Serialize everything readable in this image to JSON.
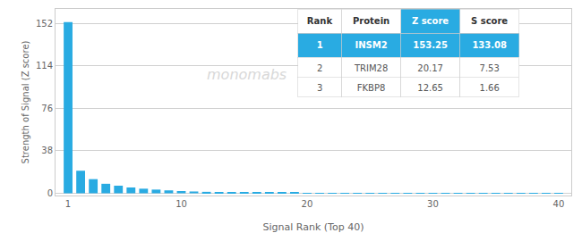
{
  "chart_data": {
    "type": "bar",
    "x": [
      1,
      2,
      3,
      4,
      5,
      6,
      7,
      8,
      9,
      10,
      11,
      12,
      13,
      14,
      15,
      16,
      17,
      18,
      19,
      20,
      21,
      22,
      23,
      24,
      25,
      26,
      27,
      28,
      29,
      30,
      31,
      32,
      33,
      34,
      35,
      36,
      37,
      38,
      39,
      40
    ],
    "values": [
      153.25,
      20.17,
      12.65,
      8.5,
      6.8,
      5.2,
      4.1,
      3.3,
      2.6,
      2.0,
      1.6,
      1.3,
      1.1,
      0.9,
      0.75,
      0.65,
      0.55,
      0.48,
      0.42,
      0.37,
      0.33,
      0.29,
      0.26,
      0.23,
      0.2,
      0.18,
      0.16,
      0.14,
      0.13,
      0.11,
      0.1,
      0.09,
      0.08,
      0.07,
      0.07,
      0.06,
      0.05,
      0.05,
      0.04,
      0.04
    ],
    "color": "#29abe2",
    "xlabel": "Signal Rank (Top 40)",
    "ylabel": "Strength of Signal (Z score)",
    "xlim": [
      0,
      41
    ],
    "xticks": [
      1,
      10,
      20,
      30,
      40
    ],
    "ylim": [
      -2,
      165
    ],
    "yticks": [
      0,
      38,
      76,
      114,
      152
    ],
    "grid": true,
    "annotations": [
      {
        "text": "monomabs"
      }
    ],
    "table": {
      "headers": [
        "Rank",
        "Protein",
        "Z score",
        "S score"
      ],
      "rows": [
        [
          "1",
          "INSM2",
          "153.25",
          "133.08"
        ],
        [
          "2",
          "TRIM28",
          "20.17",
          "7.53"
        ],
        [
          "3",
          "FKBP8",
          "12.65",
          "1.66"
        ]
      ],
      "highlight_color": "#29abe2"
    }
  }
}
